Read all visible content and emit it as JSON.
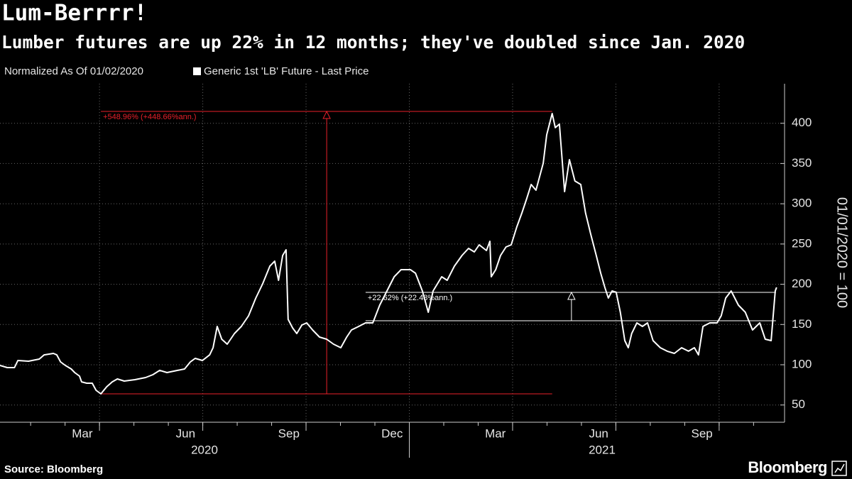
{
  "chart_data": {
    "type": "line",
    "title": "Lum-Berrrr!",
    "subtitle": "Lumber futures are up 22% in 12 months; they've doubled since Jan. 2020",
    "legend_note": "Normalized As Of 01/02/2020",
    "ylabel": "01/01/2020 = 100",
    "source": "Source: Bloomberg",
    "brand": "Bloomberg",
    "x_unit": "months since Jan. 2020",
    "x": [
      0.11,
      0.32,
      0.53,
      0.63,
      0.94,
      1.25,
      1.39,
      1.66,
      1.76,
      1.87,
      2.01,
      2.18,
      2.28,
      2.42,
      2.48,
      2.63,
      2.79,
      2.9,
      3.04,
      3.21,
      3.37,
      3.52,
      3.72,
      4.03,
      4.34,
      4.55,
      4.75,
      4.96,
      5.27,
      5.47,
      5.64,
      5.78,
      5.99,
      6.2,
      6.3,
      6.42,
      6.55,
      6.71,
      6.92,
      7.12,
      7.33,
      7.54,
      7.74,
      7.95,
      8.09,
      8.2,
      8.32,
      8.42,
      8.48,
      8.61,
      8.73,
      8.88,
      9.02,
      9.19,
      9.39,
      9.6,
      9.8,
      10.01,
      10.18,
      10.32,
      10.53,
      10.73,
      10.94,
      11.14,
      11.35,
      11.56,
      11.76,
      12.03,
      12.18,
      12.38,
      12.55,
      12.69,
      12.94,
      13.1,
      13.31,
      13.53,
      13.72,
      13.89,
      14.03,
      14.24,
      14.34,
      14.38,
      14.51,
      14.65,
      14.81,
      14.96,
      15.12,
      15.27,
      15.41,
      15.54,
      15.68,
      15.89,
      15.99,
      16.15,
      16.24,
      16.36,
      16.51,
      16.65,
      16.81,
      16.98,
      17.12,
      17.27,
      17.43,
      17.56,
      17.68,
      17.78,
      17.89,
      18.01,
      18.13,
      18.26,
      18.36,
      18.46,
      18.61,
      18.77,
      18.92,
      19.08,
      19.29,
      19.49,
      19.7,
      19.91,
      20.11,
      20.28,
      20.4,
      20.53,
      20.73,
      20.94,
      21.06,
      21.19,
      21.35,
      21.56,
      21.76,
      21.97,
      22.18,
      22.34,
      22.51,
      22.63,
      22.67
    ],
    "series": [
      {
        "name": "Generic 1st 'LB' Future - Last Price",
        "color": "#ffffff",
        "values": [
          99.1,
          96.5,
          96.5,
          105.3,
          104.4,
          107.1,
          112.3,
          114.1,
          112.3,
          103.5,
          99.1,
          94.7,
          90.3,
          85.9,
          78.8,
          77.1,
          77.1,
          68.3,
          63.9,
          72.7,
          78.8,
          82.4,
          79.7,
          81.5,
          84.1,
          87.7,
          93.0,
          90.3,
          93.0,
          94.7,
          103.5,
          107.9,
          105.3,
          112.3,
          121.2,
          147.6,
          131.7,
          125.6,
          138.8,
          147.6,
          160.8,
          182.9,
          200.5,
          222.5,
          228.7,
          204.9,
          235.8,
          242.8,
          156.4,
          145.8,
          138.8,
          149.4,
          152.0,
          143.2,
          134.4,
          131.7,
          125.6,
          121.2,
          134.4,
          143.2,
          147.6,
          152.0,
          152.0,
          174.1,
          191.7,
          209.3,
          218.1,
          218.1,
          213.7,
          191.7,
          165.2,
          191.7,
          209.3,
          204.9,
          222.5,
          235.8,
          244.6,
          240.2,
          249.0,
          241.9,
          253.4,
          209.3,
          218.1,
          235.8,
          246.3,
          249.0,
          271.0,
          288.7,
          306.3,
          323.9,
          316.9,
          350.4,
          385.6,
          412.1,
          394.5,
          398.9,
          315.1,
          354.8,
          328.3,
          323.9,
          288.7,
          262.2,
          235.8,
          213.7,
          196.1,
          182.9,
          191.7,
          189.9,
          165.2,
          130.0,
          121.2,
          138.8,
          152.0,
          147.6,
          152.0,
          130.0,
          121.2,
          116.8,
          114.1,
          121.2,
          116.8,
          121.2,
          112.3,
          147.6,
          152.0,
          152.0,
          160.8,
          182.9,
          191.7,
          174.1,
          165.2,
          143.2,
          152.0,
          131.7,
          130.0,
          191.7,
          196.1
        ]
      }
    ],
    "xlim": [
      0.11,
      22.9
    ],
    "ylim": [
      28.6,
      449.1
    ],
    "yticks": [
      50,
      100,
      150,
      200,
      250,
      300,
      350,
      400
    ],
    "xticks": [
      {
        "value": 2.5,
        "label": "Mar"
      },
      {
        "value": 5.5,
        "label": "Jun"
      },
      {
        "value": 8.5,
        "label": "Sep"
      },
      {
        "value": 11.5,
        "label": "Dec"
      },
      {
        "value": 14.5,
        "label": "Mar"
      },
      {
        "value": 17.5,
        "label": "Jun"
      },
      {
        "value": 20.5,
        "label": "Sep"
      }
    ],
    "xgrid": [
      3,
      6,
      9,
      12,
      15,
      18,
      21
    ],
    "xminor_ticks": [
      1,
      2,
      3,
      4,
      5,
      6,
      7,
      8,
      9,
      10,
      11,
      12,
      13,
      14,
      15,
      16,
      17,
      18,
      19,
      20,
      21,
      22
    ],
    "year_labels": [
      {
        "value": 6.05,
        "label": "2020"
      },
      {
        "value": 17.6,
        "label": "2021"
      }
    ],
    "year_divider": 12,
    "grid": true,
    "annotations": [
      {
        "label": "+548.96% (+448.66%ann.)",
        "x": [
          3.04,
          16.15
        ],
        "y": [
          63.9,
          414.7
        ],
        "arrow_x": 9.6,
        "color": "#e8202a"
      },
      {
        "label": "+22.62% (+22.48%ann.)",
        "x": [
          10.73,
          22.65
        ],
        "y": [
          154.7,
          189.9
        ],
        "arrow_x": 16.71,
        "color": "#ffffff"
      }
    ]
  }
}
